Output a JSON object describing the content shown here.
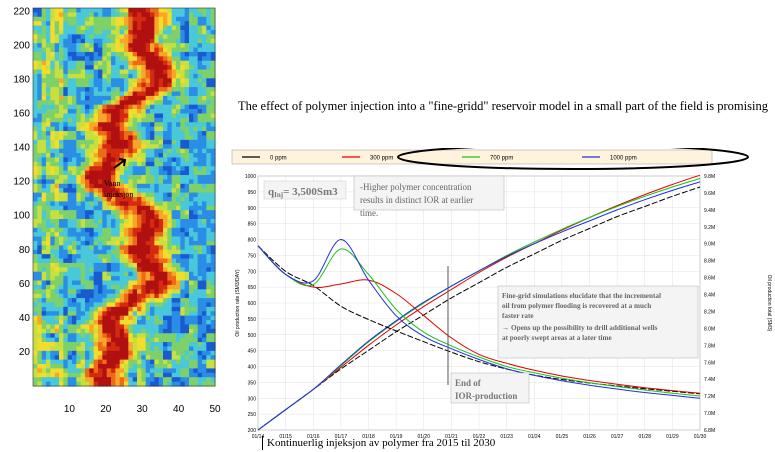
{
  "headline": "The effect of polymer injection into a \"fine-gridd\" reservoir model in a small part of the field is promising",
  "footer_caption": "Kontinuerlig injeksjon av polymer fra 2015 til 2030",
  "colors": {
    "series_0ppm": "#000000",
    "series_300ppm": "#e00000",
    "series_700ppm": "#18c418",
    "series_1000ppm": "#2030e0",
    "legend_bg": "#fff3dd"
  },
  "chart_data": [
    {
      "type": "heatmap",
      "x_ticks": [
        "10",
        "20",
        "30",
        "40",
        "50"
      ],
      "y_ticks": [
        "20",
        "40",
        "60",
        "80",
        "100",
        "120",
        "140",
        "160",
        "180",
        "200",
        "220"
      ],
      "xlim": [
        0,
        50
      ],
      "ylim": [
        0,
        222
      ],
      "annotation": "Vann injeksjon"
    },
    {
      "type": "line",
      "legend": [
        "0 ppm",
        "300 ppm",
        "700 ppm",
        "1000 ppm"
      ],
      "legend_placement": "top",
      "ylabel_left": "Oil production rate (SM3/DAY)",
      "ylabel_right": "Oil production total (SM3)",
      "x_ticks": [
        "01/14",
        "01/15",
        "01/16",
        "01/17",
        "01/18",
        "01/19",
        "01/20",
        "01/21",
        "01/22",
        "01/23",
        "01/24",
        "01/25",
        "01/26",
        "01/27",
        "01/28",
        "01/29",
        "01/30"
      ],
      "y_left_ticks": [
        "200",
        "250",
        "300",
        "350",
        "400",
        "450",
        "500",
        "550",
        "600",
        "650",
        "700",
        "750",
        "800",
        "850",
        "900",
        "950",
        "1000"
      ],
      "y_right_ticks": [
        "6.8M",
        "7.0M",
        "7.2M",
        "7.4M",
        "7.6M",
        "7.8M",
        "8.0M",
        "8.2M",
        "8.4M",
        "8.6M",
        "8.8M",
        "9.0M",
        "9.2M",
        "9.4M",
        "9.6M",
        "9.8M"
      ],
      "ylim_left": [
        200,
        1000
      ],
      "ylim_right": [
        6.8,
        9.8
      ],
      "x_years": [
        2014,
        2015,
        2016,
        2017,
        2018,
        2019,
        2020,
        2021,
        2022,
        2023,
        2024,
        2025,
        2026,
        2027,
        2028,
        2029,
        2030
      ],
      "rate_series": [
        {
          "name": "0 ppm",
          "values": [
            780,
            700,
            655,
            590,
            548,
            512,
            478,
            445,
            415,
            392,
            373,
            359,
            348,
            339,
            330,
            322,
            314
          ]
        },
        {
          "name": "300 ppm",
          "values": [
            780,
            690,
            650,
            660,
            672,
            630,
            560,
            490,
            438,
            410,
            388,
            370,
            356,
            344,
            333,
            324,
            316
          ]
        },
        {
          "name": "700 ppm",
          "values": [
            780,
            690,
            658,
            770,
            690,
            580,
            508,
            465,
            430,
            400,
            380,
            363,
            349,
            337,
            326,
            316,
            307
          ]
        },
        {
          "name": "1000 ppm",
          "values": [
            780,
            690,
            670,
            800,
            672,
            560,
            495,
            456,
            422,
            393,
            372,
            355,
            341,
            329,
            318,
            309,
            300
          ]
        }
      ],
      "total_series": [
        {
          "name": "0 ppm",
          "values": [
            6.8,
            7.04,
            7.28,
            7.52,
            7.74,
            7.96,
            8.16,
            8.36,
            8.54,
            8.72,
            8.88,
            9.04,
            9.18,
            9.32,
            9.44,
            9.56,
            9.67
          ]
        },
        {
          "name": "300 ppm",
          "values": [
            6.8,
            7.04,
            7.28,
            7.54,
            7.8,
            8.04,
            8.26,
            8.46,
            8.66,
            8.84,
            9.0,
            9.16,
            9.31,
            9.45,
            9.58,
            9.7,
            9.81
          ]
        },
        {
          "name": "700 ppm",
          "values": [
            6.8,
            7.04,
            7.28,
            7.56,
            7.84,
            8.08,
            8.3,
            8.5,
            8.68,
            8.86,
            9.02,
            9.17,
            9.31,
            9.44,
            9.56,
            9.67,
            9.77
          ]
        },
        {
          "name": "1000 ppm",
          "values": [
            6.8,
            7.04,
            7.28,
            7.57,
            7.85,
            8.09,
            8.31,
            8.5,
            8.68,
            8.85,
            9.0,
            9.14,
            9.27,
            9.4,
            9.52,
            9.63,
            9.73
          ]
        }
      ],
      "annotations": {
        "q_inj_prefix": "q",
        "q_inj_sub": "Inj",
        "q_inj_value": "= 3,500Sm3",
        "higher_conc": "-Higher polymer concentration results in distinct IOR at earlier time.",
        "fine_grid": "Fine-grid simulations elucidate that the incremental oil from polymer flooding is recovered at a much faster rate",
        "opens_up": "→ Opens up the possibility to drill additional wells at poorly swept areas at a later time",
        "end_ior": "End of IOR-production"
      }
    }
  ]
}
